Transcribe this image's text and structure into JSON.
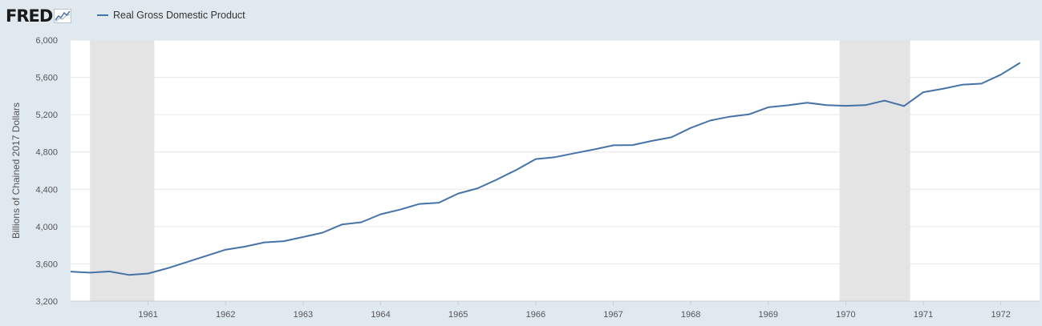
{
  "header": {
    "logo_text": "FRED",
    "logo_icon": "sparkline-chart-icon"
  },
  "chart_data": {
    "type": "line",
    "ylabel": "Billions of Chained 2017 Dollars",
    "ylim": [
      3200,
      6000
    ],
    "xlim": [
      1960.0,
      1972.5
    ],
    "yticks": [
      "3,200",
      "3,600",
      "4,000",
      "4,400",
      "4,800",
      "5,200",
      "5,600",
      "6,000"
    ],
    "ytick_values": [
      3200,
      3600,
      4000,
      4400,
      4800,
      5200,
      5600,
      6000
    ],
    "xticks": [
      "1961",
      "1962",
      "1963",
      "1964",
      "1965",
      "1966",
      "1967",
      "1968",
      "1969",
      "1970",
      "1971",
      "1972"
    ],
    "grid": true,
    "legend_position": "top-left",
    "recessions": [
      [
        1960.25,
        1961.08
      ],
      [
        1969.92,
        1970.83
      ]
    ],
    "series": [
      {
        "name": "Real Gross Domestic Product",
        "color": "#4572a7",
        "x": [
          1960.0,
          1960.25,
          1960.5,
          1960.75,
          1961.0,
          1961.25,
          1961.5,
          1961.75,
          1962.0,
          1962.25,
          1962.5,
          1962.75,
          1963.0,
          1963.25,
          1963.5,
          1963.75,
          1964.0,
          1964.25,
          1964.5,
          1964.75,
          1965.0,
          1965.25,
          1965.5,
          1965.75,
          1966.0,
          1966.25,
          1966.5,
          1966.75,
          1967.0,
          1967.25,
          1967.5,
          1967.75,
          1968.0,
          1968.25,
          1968.5,
          1968.75,
          1969.0,
          1969.25,
          1969.5,
          1969.75,
          1970.0,
          1970.25,
          1970.5,
          1970.75,
          1971.0,
          1971.25,
          1971.5,
          1971.75,
          1972.0,
          1972.25
        ],
        "values": [
          3517,
          3506,
          3519,
          3482,
          3496,
          3553,
          3619,
          3686,
          3752,
          3785,
          3830,
          3843,
          3888,
          3934,
          4022,
          4046,
          4132,
          4182,
          4243,
          4256,
          4354,
          4410,
          4505,
          4608,
          4724,
          4744,
          4786,
          4827,
          4871,
          4874,
          4919,
          4957,
          5058,
          5137,
          5178,
          5203,
          5279,
          5300,
          5328,
          5303,
          5295,
          5302,
          5351,
          5292,
          5441,
          5477,
          5521,
          5533,
          5629,
          5757
        ]
      }
    ]
  }
}
